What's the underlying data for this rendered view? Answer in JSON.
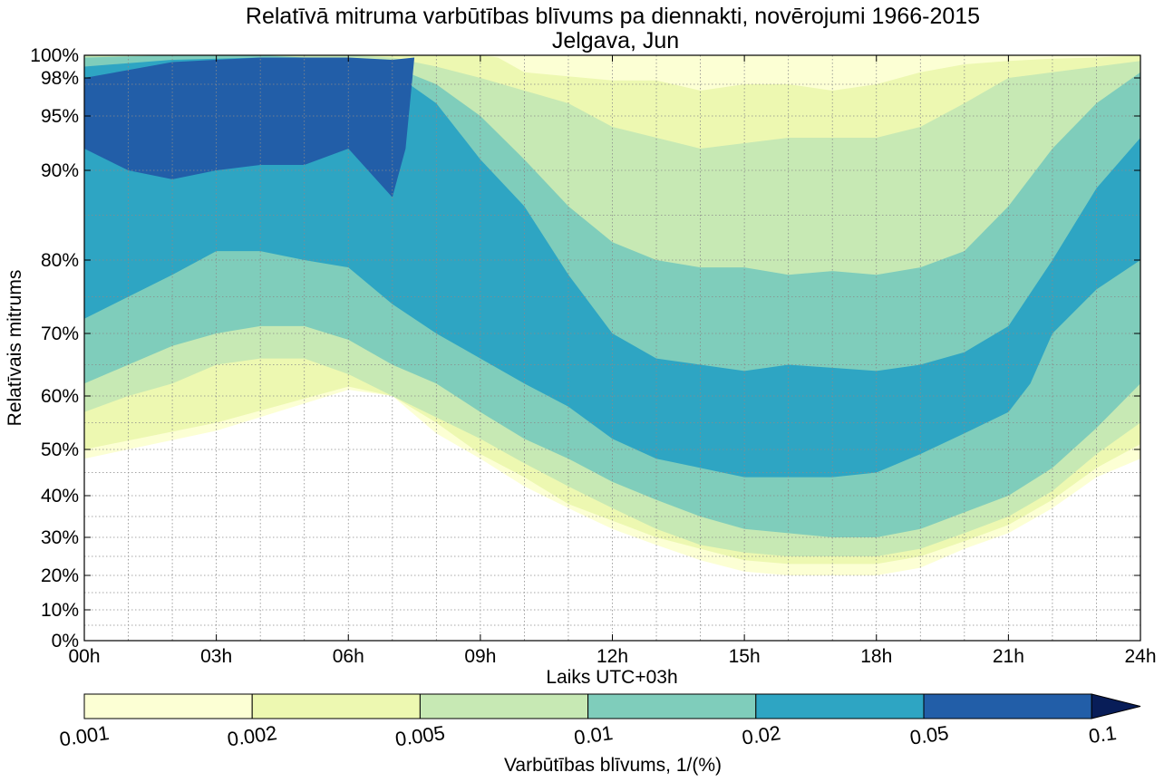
{
  "chart_data": {
    "type": "heatmap",
    "title": "Relatīvā mitruma varbūtības blīvums pa diennakti, novērojumi 1966-2015",
    "subtitle": "Jelgava, Jun",
    "xlabel": "Laiks UTC+03h",
    "ylabel": "Relatīvais mitrums",
    "x_ticks": [
      "00h",
      "03h",
      "06h",
      "09h",
      "12h",
      "15h",
      "18h",
      "21h",
      "24h"
    ],
    "x_range": [
      0,
      24
    ],
    "y_scale": "stretched toward high humidity",
    "y_ticks": [
      {
        "label": "0%",
        "value": 0
      },
      {
        "label": "10%",
        "value": 10
      },
      {
        "label": "20%",
        "value": 20
      },
      {
        "label": "30%",
        "value": 30
      },
      {
        "label": "40%",
        "value": 40
      },
      {
        "label": "50%",
        "value": 50
      },
      {
        "label": "60%",
        "value": 60
      },
      {
        "label": "70%",
        "value": 70
      },
      {
        "label": "80%",
        "value": 80
      },
      {
        "label": "90%",
        "value": 90
      },
      {
        "label": "95%",
        "value": 95
      },
      {
        "label": "98%",
        "value": 98
      },
      {
        "label": "100%",
        "value": 100
      }
    ],
    "grid": true,
    "colorbar": {
      "label": "Varbūtības blīvums, 1/(%)",
      "levels": [
        "0.001",
        "0.002",
        "0.005",
        "0.01",
        "0.02",
        "0.05",
        "0.1"
      ],
      "colors": [
        "#fcffd4",
        "#edf8b1",
        "#c7e9b4",
        "#7fcdbb",
        "#2ea5c3",
        "#225ea8",
        "#081d58"
      ],
      "extend": "max"
    },
    "contour_bands": [
      {
        "level": "0.001",
        "color": "#fcffd4",
        "lower": [
          [
            0,
            48
          ],
          [
            3,
            53.5
          ],
          [
            6,
            61
          ],
          [
            7,
            60
          ],
          [
            8,
            53
          ],
          [
            9,
            48
          ],
          [
            10,
            42
          ],
          [
            11,
            37
          ],
          [
            12,
            32
          ],
          [
            13,
            28
          ],
          [
            14,
            24
          ],
          [
            15,
            21
          ],
          [
            16,
            20
          ],
          [
            17,
            20
          ],
          [
            18,
            20
          ],
          [
            19,
            22
          ],
          [
            20,
            27
          ],
          [
            21,
            31
          ],
          [
            22,
            37
          ],
          [
            23,
            44
          ],
          [
            24,
            48
          ]
        ],
        "upper": [
          [
            0,
            100
          ],
          [
            24,
            100
          ]
        ]
      },
      {
        "level": "0.002",
        "color": "#edf8b1",
        "lower": [
          [
            0,
            50
          ],
          [
            3,
            55
          ],
          [
            6,
            61.5
          ],
          [
            7,
            60
          ],
          [
            8,
            55
          ],
          [
            9,
            49
          ],
          [
            10,
            44
          ],
          [
            11,
            38
          ],
          [
            12,
            34
          ],
          [
            13,
            30
          ],
          [
            14,
            27
          ],
          [
            15,
            24
          ],
          [
            16,
            23
          ],
          [
            17,
            23
          ],
          [
            18,
            23
          ],
          [
            19,
            25
          ],
          [
            20,
            29
          ],
          [
            21,
            33
          ],
          [
            22,
            39
          ],
          [
            23,
            46
          ],
          [
            24,
            51
          ]
        ],
        "upper": [
          [
            0,
            100
          ],
          [
            9,
            100
          ],
          [
            9.4,
            99.8
          ],
          [
            10,
            98.5
          ],
          [
            12,
            97.8
          ],
          [
            13,
            97.8
          ],
          [
            14,
            97
          ],
          [
            15,
            97.5
          ],
          [
            16,
            97.5
          ],
          [
            17,
            97
          ],
          [
            18,
            97.5
          ],
          [
            19,
            98.5
          ],
          [
            20,
            99.2
          ],
          [
            21,
            99.5
          ],
          [
            22,
            99.7
          ],
          [
            23,
            99.8
          ],
          [
            24,
            100
          ]
        ]
      },
      {
        "level": "0.005",
        "color": "#c7e9b4",
        "lower": [
          [
            0,
            57
          ],
          [
            1,
            60
          ],
          [
            2,
            62
          ],
          [
            3,
            65
          ],
          [
            4,
            66
          ],
          [
            5,
            66
          ],
          [
            6,
            63.5
          ],
          [
            7,
            60
          ],
          [
            8,
            56
          ],
          [
            9,
            52
          ],
          [
            10,
            47
          ],
          [
            11,
            42
          ],
          [
            12,
            37
          ],
          [
            13,
            32
          ],
          [
            14,
            28
          ],
          [
            15,
            26
          ],
          [
            16,
            25
          ],
          [
            17,
            25
          ],
          [
            18,
            25
          ],
          [
            19,
            27
          ],
          [
            20,
            31
          ],
          [
            21,
            35
          ],
          [
            22,
            41
          ],
          [
            23,
            49
          ],
          [
            24,
            55
          ]
        ],
        "upper": [
          [
            0,
            100
          ],
          [
            4,
            100
          ],
          [
            6,
            100
          ],
          [
            7,
            99.8
          ],
          [
            8,
            99
          ],
          [
            9,
            98
          ],
          [
            10,
            97
          ],
          [
            11,
            96
          ],
          [
            12,
            94
          ],
          [
            13,
            93
          ],
          [
            14,
            92
          ],
          [
            15,
            92.5
          ],
          [
            16,
            93
          ],
          [
            17,
            93
          ],
          [
            18,
            93
          ],
          [
            19,
            94
          ],
          [
            20,
            96
          ],
          [
            21,
            98
          ],
          [
            22,
            98.5
          ],
          [
            23,
            99
          ],
          [
            24,
            99.5
          ]
        ]
      },
      {
        "level": "0.01",
        "color": "#7fcdbb",
        "lower": [
          [
            0,
            62
          ],
          [
            1,
            65
          ],
          [
            2,
            68
          ],
          [
            3,
            70
          ],
          [
            4,
            71
          ],
          [
            5,
            71
          ],
          [
            6,
            69
          ],
          [
            7,
            65
          ],
          [
            8,
            62
          ],
          [
            9,
            57
          ],
          [
            10,
            52
          ],
          [
            11,
            48
          ],
          [
            12,
            43
          ],
          [
            13,
            39
          ],
          [
            14,
            35
          ],
          [
            15,
            32
          ],
          [
            16,
            31
          ],
          [
            17,
            30
          ],
          [
            18,
            30
          ],
          [
            19,
            32
          ],
          [
            20,
            36
          ],
          [
            21,
            40
          ],
          [
            22,
            46
          ],
          [
            23,
            54
          ],
          [
            24,
            62
          ]
        ],
        "upper": [
          [
            0,
            99.8
          ],
          [
            2,
            100
          ],
          [
            4,
            100
          ],
          [
            6,
            99.6
          ],
          [
            7,
            99
          ],
          [
            8,
            97.5
          ],
          [
            9,
            95
          ],
          [
            10,
            91
          ],
          [
            11,
            86
          ],
          [
            12,
            82
          ],
          [
            13,
            80
          ],
          [
            14,
            79
          ],
          [
            15,
            79
          ],
          [
            16,
            78
          ],
          [
            17,
            78.5
          ],
          [
            18,
            78
          ],
          [
            19,
            79
          ],
          [
            20,
            81
          ],
          [
            21,
            86
          ],
          [
            22,
            92
          ],
          [
            23,
            96
          ],
          [
            24,
            98.5
          ]
        ]
      },
      {
        "level": "0.02",
        "color": "#2ea5c3",
        "lower": [
          [
            0,
            72
          ],
          [
            1,
            75
          ],
          [
            2,
            78
          ],
          [
            3,
            81
          ],
          [
            4,
            81
          ],
          [
            5,
            80
          ],
          [
            6,
            79
          ],
          [
            7,
            74
          ],
          [
            8,
            70
          ],
          [
            9,
            66
          ],
          [
            10,
            62
          ],
          [
            11,
            58
          ],
          [
            12,
            52
          ],
          [
            13,
            48
          ],
          [
            14,
            46
          ],
          [
            15,
            44
          ],
          [
            16,
            44
          ],
          [
            17,
            44
          ],
          [
            18,
            45
          ],
          [
            19,
            49
          ],
          [
            20,
            53
          ],
          [
            21,
            57
          ],
          [
            21.5,
            62
          ],
          [
            22,
            70
          ],
          [
            23,
            76
          ],
          [
            24,
            80
          ]
        ],
        "upper": [
          [
            0,
            99
          ],
          [
            2,
            99.6
          ],
          [
            4,
            99.8
          ],
          [
            5,
            99.8
          ],
          [
            6,
            99.5
          ],
          [
            7,
            98.5
          ],
          [
            8,
            96
          ],
          [
            9,
            91
          ],
          [
            10,
            86
          ],
          [
            11,
            78
          ],
          [
            12,
            70
          ],
          [
            13,
            66
          ],
          [
            14,
            65
          ],
          [
            15,
            64
          ],
          [
            16,
            65
          ],
          [
            17,
            64.5
          ],
          [
            18,
            64
          ],
          [
            19,
            65
          ],
          [
            20,
            67
          ],
          [
            21,
            71
          ],
          [
            22,
            80
          ],
          [
            23,
            88
          ],
          [
            24,
            93
          ]
        ]
      },
      {
        "level": "0.05",
        "color": "#225ea8",
        "lower": [
          [
            0,
            92
          ],
          [
            1,
            90
          ],
          [
            2,
            89
          ],
          [
            3,
            90
          ],
          [
            4,
            90.5
          ],
          [
            5,
            90.5
          ],
          [
            6,
            92
          ],
          [
            7,
            87
          ],
          [
            7.3,
            92
          ],
          [
            7.5,
            99.8
          ]
        ],
        "upper": [
          [
            0,
            98
          ],
          [
            2,
            99.4
          ],
          [
            4,
            99.8
          ],
          [
            6,
            99.8
          ],
          [
            7,
            99.6
          ],
          [
            7.5,
            99.8
          ]
        ]
      }
    ]
  }
}
